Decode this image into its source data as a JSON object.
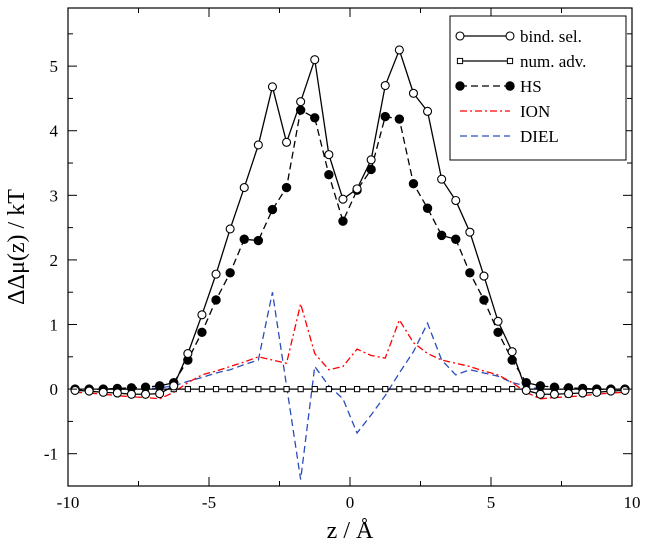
{
  "chart_data": {
    "type": "line",
    "title": "",
    "xlabel": "z / Å",
    "ylabel": "ΔΔμ(z) / kT",
    "xlim": [
      -10,
      10
    ],
    "ylim": [
      -1.5,
      5.9
    ],
    "xticks": [
      -10,
      -5,
      0,
      5,
      10
    ],
    "yticks": [
      -1,
      0,
      1,
      2,
      3,
      4,
      5
    ],
    "grid": false,
    "legend_position": "top-right",
    "series": [
      {
        "name": "bind. sel.",
        "style": "solid",
        "marker": "open-circle",
        "color": "#000000",
        "x": [
          -9.75,
          -9.25,
          -8.75,
          -8.25,
          -7.75,
          -7.25,
          -6.75,
          -6.25,
          -5.75,
          -5.25,
          -4.75,
          -4.25,
          -3.75,
          -3.25,
          -2.75,
          -2.25,
          -1.75,
          -1.25,
          -0.75,
          -0.25,
          0.25,
          0.75,
          1.25,
          1.75,
          2.25,
          2.75,
          3.25,
          3.75,
          4.25,
          4.75,
          5.25,
          5.75,
          6.25,
          6.75,
          7.25,
          7.75,
          8.25,
          8.75,
          9.25,
          9.75
        ],
        "y": [
          -0.02,
          -0.03,
          -0.05,
          -0.06,
          -0.08,
          -0.08,
          -0.07,
          0.05,
          0.55,
          1.15,
          1.78,
          2.48,
          3.12,
          3.78,
          4.68,
          3.82,
          4.45,
          5.1,
          3.63,
          2.94,
          3.1,
          3.55,
          4.7,
          5.25,
          4.58,
          4.3,
          3.25,
          2.92,
          2.43,
          1.75,
          1.05,
          0.58,
          -0.02,
          -0.08,
          -0.08,
          -0.07,
          -0.06,
          -0.05,
          -0.03,
          -0.02
        ]
      },
      {
        "name": "num. adv.",
        "style": "solid",
        "marker": "open-square",
        "color": "#000000",
        "x": [
          -9.75,
          -9.25,
          -8.75,
          -8.25,
          -7.75,
          -7.25,
          -6.75,
          -6.25,
          -5.75,
          -5.25,
          -4.75,
          -4.25,
          -3.75,
          -3.25,
          -2.75,
          -2.25,
          -1.75,
          -1.25,
          -0.75,
          -0.25,
          0.25,
          0.75,
          1.25,
          1.75,
          2.25,
          2.75,
          3.25,
          3.75,
          4.25,
          4.75,
          5.25,
          5.75,
          6.25,
          6.75,
          7.25,
          7.75,
          8.25,
          8.75,
          9.25,
          9.75
        ],
        "y": [
          0,
          0,
          0,
          0,
          0,
          0,
          0,
          0,
          0,
          0,
          0,
          0,
          0,
          0,
          0,
          0,
          0,
          0,
          0,
          0,
          0,
          0,
          0,
          0,
          0,
          0,
          0,
          0,
          0,
          0,
          0,
          0,
          0,
          0,
          0,
          0,
          0,
          0,
          0,
          0
        ]
      },
      {
        "name": "HS",
        "style": "dashed",
        "marker": "filled-circle",
        "color": "#000000",
        "x": [
          -9.75,
          -9.25,
          -8.75,
          -8.25,
          -7.75,
          -7.25,
          -6.75,
          -6.25,
          -5.75,
          -5.25,
          -4.75,
          -4.25,
          -3.75,
          -3.25,
          -2.75,
          -2.25,
          -1.75,
          -1.25,
          -0.75,
          -0.25,
          0.25,
          0.75,
          1.25,
          1.75,
          2.25,
          2.75,
          3.25,
          3.75,
          4.25,
          4.75,
          5.25,
          5.75,
          6.25,
          6.75,
          7.25,
          7.75,
          8.25,
          8.75,
          9.25,
          9.75
        ],
        "y": [
          0,
          0,
          0,
          0.01,
          0.02,
          0.03,
          0.05,
          0.1,
          0.45,
          0.88,
          1.38,
          1.8,
          2.32,
          2.3,
          2.78,
          3.12,
          4.32,
          4.2,
          3.32,
          2.6,
          3.08,
          3.4,
          4.22,
          4.18,
          3.18,
          2.8,
          2.38,
          2.32,
          1.8,
          1.38,
          0.88,
          0.45,
          0.1,
          0.05,
          0.03,
          0.02,
          0.01,
          0,
          0,
          0
        ]
      },
      {
        "name": "ION",
        "style": "dash-dot",
        "marker": "none",
        "color": "#ff0000",
        "x": [
          -9.75,
          -9.25,
          -8.75,
          -8.25,
          -7.75,
          -7.25,
          -6.75,
          -6.25,
          -5.75,
          -5.25,
          -4.75,
          -4.25,
          -3.75,
          -3.25,
          -2.75,
          -2.25,
          -1.75,
          -1.25,
          -0.75,
          -0.25,
          0.25,
          0.75,
          1.25,
          1.75,
          2.25,
          2.75,
          3.25,
          3.75,
          4.25,
          4.75,
          5.25,
          5.75,
          6.25,
          6.75,
          7.25,
          7.75,
          8.25,
          8.75,
          9.25,
          9.75
        ],
        "y": [
          -0.05,
          -0.06,
          -0.08,
          -0.1,
          -0.12,
          -0.13,
          -0.15,
          -0.05,
          0.1,
          0.22,
          0.28,
          0.35,
          0.42,
          0.5,
          0.45,
          0.4,
          1.32,
          0.55,
          0.3,
          0.35,
          0.62,
          0.52,
          0.48,
          1.07,
          0.72,
          0.55,
          0.45,
          0.4,
          0.35,
          0.28,
          0.22,
          0.1,
          -0.05,
          -0.15,
          -0.13,
          -0.12,
          -0.1,
          -0.08,
          -0.06,
          -0.05
        ]
      },
      {
        "name": "DIEL",
        "style": "dashed",
        "marker": "none",
        "color": "#2a4dbb",
        "x": [
          -9.75,
          -9.25,
          -8.75,
          -8.25,
          -7.75,
          -7.25,
          -6.75,
          -6.25,
          -5.75,
          -5.25,
          -4.75,
          -4.25,
          -3.75,
          -3.25,
          -2.75,
          -2.25,
          -1.75,
          -1.25,
          -0.75,
          -0.25,
          0.25,
          0.75,
          1.25,
          1.75,
          2.25,
          2.75,
          3.25,
          3.75,
          4.25,
          4.75,
          5.25,
          5.75,
          6.25,
          6.75,
          7.25,
          7.75,
          8.25,
          8.75,
          9.25,
          9.75
        ],
        "y": [
          0,
          0,
          0,
          0,
          0,
          0,
          0.02,
          0.05,
          0.12,
          0.18,
          0.25,
          0.3,
          0.38,
          0.45,
          1.5,
          0.05,
          -1.4,
          0.35,
          0.05,
          -0.15,
          -0.68,
          -0.4,
          -0.1,
          0.25,
          0.58,
          1.02,
          0.45,
          0.22,
          0.3,
          0.25,
          0.2,
          0.1,
          0.05,
          0,
          0,
          0,
          0,
          0,
          0,
          0
        ]
      }
    ]
  }
}
